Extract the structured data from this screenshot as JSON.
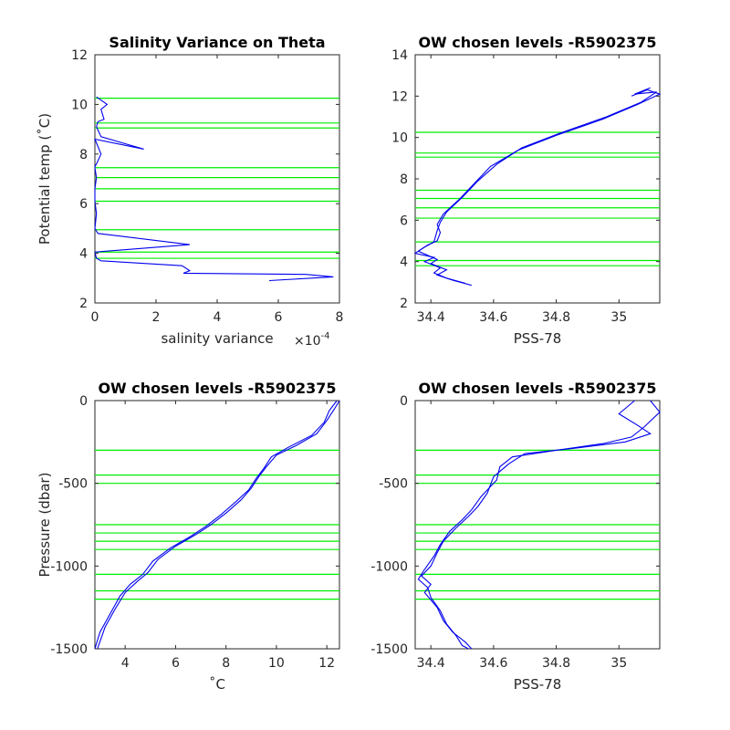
{
  "colors": {
    "profile": "#0000ee",
    "levels": "#00ee00",
    "axis": "#262626",
    "background": "#ffffff"
  },
  "chart_data": [
    {
      "type": "line",
      "title": "Salinity Variance on Theta",
      "xlabel": "salinity variance",
      "x_exponent": "×10",
      "x_exponent_power": "-4",
      "ylabel": "Potential temp (˚C)",
      "xlim": [
        0,
        8
      ],
      "ylim": [
        2,
        12
      ],
      "xticks": [
        "0",
        "2",
        "4",
        "6",
        "8"
      ],
      "yticks": [
        "2",
        "4",
        "6",
        "8",
        "10",
        "12"
      ],
      "xtick_values": [
        0,
        2,
        4,
        6,
        8
      ],
      "ytick_values": [
        2,
        4,
        6,
        8,
        10,
        12
      ],
      "grid": false,
      "level_lines": {
        "axis": "y",
        "values": [
          10.25,
          9.25,
          9.05,
          7.45,
          7.05,
          6.6,
          6.1,
          4.95,
          4.05,
          3.8
        ]
      },
      "series": [
        {
          "x": [
            5.7,
            7.8,
            6.9,
            2.9,
            3.1,
            2.85,
            0.2,
            0.05,
            0.0,
            3.1,
            0.1,
            0.0,
            0.05,
            0.0,
            0.0,
            0.05,
            0.0,
            0.0,
            0.05,
            0.2,
            0.0,
            1.6,
            0.2,
            0.05,
            0.1,
            0.3,
            0.2,
            0.4,
            0.05
          ],
          "y": [
            2.9,
            3.05,
            3.15,
            3.2,
            3.3,
            3.5,
            3.7,
            3.8,
            4.05,
            4.35,
            4.8,
            5.0,
            5.6,
            6.1,
            6.6,
            7.05,
            7.45,
            7.5,
            7.6,
            8.0,
            8.6,
            8.2,
            8.7,
            9.1,
            9.3,
            9.4,
            9.8,
            10.0,
            10.3
          ]
        }
      ]
    },
    {
      "type": "line",
      "title": "OW chosen levels -R5902375",
      "xlabel": "PSS-78",
      "ylabel": "",
      "xlim": [
        34.35,
        35.13
      ],
      "ylim": [
        2,
        14
      ],
      "xticks": [
        "34.4",
        "34.6",
        "34.8",
        "35"
      ],
      "yticks": [
        "2",
        "4",
        "6",
        "8",
        "10",
        "12",
        "14"
      ],
      "xtick_values": [
        34.4,
        34.6,
        34.8,
        35.0
      ],
      "ytick_values": [
        2,
        4,
        6,
        8,
        10,
        12,
        14
      ],
      "grid": false,
      "level_lines": {
        "axis": "y",
        "values": [
          10.25,
          9.25,
          9.05,
          7.45,
          7.05,
          6.6,
          6.1,
          4.95,
          4.05,
          3.8
        ]
      },
      "series": [
        {
          "x": [
            34.53,
            34.47,
            34.42,
            34.45,
            34.4,
            34.42,
            34.36,
            34.39,
            34.42,
            34.43,
            34.42,
            34.44,
            34.49,
            34.54,
            34.59,
            34.68,
            34.8,
            34.95,
            35.06,
            35.13,
            35.09,
            35.04
          ],
          "y": [
            2.85,
            3.1,
            3.35,
            3.6,
            3.9,
            4.1,
            4.5,
            4.8,
            5.0,
            5.4,
            5.8,
            6.3,
            7.0,
            7.8,
            8.6,
            9.4,
            10.1,
            10.9,
            11.6,
            12.1,
            12.3,
            12.0
          ]
        },
        {
          "x": [
            34.51,
            34.45,
            34.41,
            34.43,
            34.38,
            34.41,
            34.35,
            34.38,
            34.41,
            34.42,
            34.43,
            34.45,
            34.5,
            34.55,
            34.61,
            34.69,
            34.81,
            34.96,
            35.07,
            35.12,
            35.05,
            35.1
          ],
          "y": [
            2.95,
            3.2,
            3.45,
            3.7,
            4.0,
            4.2,
            4.4,
            4.7,
            4.95,
            5.5,
            5.9,
            6.4,
            7.1,
            7.9,
            8.7,
            9.5,
            10.2,
            11.0,
            11.7,
            12.2,
            12.1,
            12.4
          ]
        }
      ]
    },
    {
      "type": "line",
      "title": "OW chosen levels -R5902375",
      "xlabel": "˚C",
      "ylabel": "Pressure (dbar)",
      "xlim": [
        2.8,
        12.5
      ],
      "ylim": [
        -1500,
        0
      ],
      "xticks": [
        "4",
        "6",
        "8",
        "10",
        "12"
      ],
      "yticks": [
        "-1500",
        "-1000",
        "-500",
        "0"
      ],
      "xtick_values": [
        4,
        6,
        8,
        10,
        12
      ],
      "ytick_values": [
        -1500,
        -1000,
        -500,
        0
      ],
      "grid": false,
      "level_lines": {
        "axis": "y",
        "values": [
          -300,
          -450,
          -500,
          -750,
          -800,
          -850,
          -900,
          -1050,
          -1150,
          -1200
        ]
      },
      "series": [
        {
          "x": [
            12.5,
            12.3,
            12.0,
            11.6,
            10.8,
            10.0,
            9.6,
            9.3,
            9.0,
            8.6,
            8.0,
            7.4,
            6.8,
            6.0,
            5.3,
            4.9,
            4.5,
            4.0,
            3.6,
            3.2,
            2.9
          ],
          "y": [
            0,
            -50,
            -120,
            -200,
            -270,
            -330,
            -400,
            -460,
            -530,
            -600,
            -680,
            -750,
            -810,
            -880,
            -960,
            -1040,
            -1090,
            -1160,
            -1260,
            -1370,
            -1500
          ]
        },
        {
          "x": [
            12.4,
            12.1,
            11.9,
            11.4,
            10.5,
            9.8,
            9.5,
            9.2,
            8.9,
            8.4,
            7.8,
            7.2,
            6.6,
            5.8,
            5.1,
            4.7,
            4.2,
            3.8,
            3.4,
            3.0,
            2.8
          ],
          "y": [
            0,
            -60,
            -130,
            -210,
            -280,
            -340,
            -410,
            -470,
            -540,
            -610,
            -690,
            -760,
            -820,
            -890,
            -970,
            -1050,
            -1110,
            -1180,
            -1290,
            -1400,
            -1500
          ]
        }
      ]
    },
    {
      "type": "line",
      "title": "OW chosen levels -R5902375",
      "xlabel": "PSS-78",
      "ylabel": "",
      "xlim": [
        34.35,
        35.13
      ],
      "ylim": [
        -1500,
        0
      ],
      "xticks": [
        "34.4",
        "34.6",
        "34.8",
        "35"
      ],
      "yticks": [
        "-1500",
        "-1000",
        "-500",
        "0"
      ],
      "xtick_values": [
        34.4,
        34.6,
        34.8,
        35.0
      ],
      "ytick_values": [
        -1500,
        -1000,
        -500,
        0
      ],
      "grid": false,
      "level_lines": {
        "axis": "y",
        "values": [
          -300,
          -450,
          -500,
          -750,
          -800,
          -850,
          -900,
          -1050,
          -1150,
          -1200
        ]
      },
      "series": [
        {
          "x": [
            35.05,
            35.0,
            35.06,
            35.1,
            35.02,
            34.85,
            34.7,
            34.65,
            34.6,
            34.58,
            34.55,
            34.52,
            34.48,
            34.44,
            34.42,
            34.4,
            34.37,
            34.4,
            34.38,
            34.42,
            34.44,
            34.47,
            34.51,
            34.53
          ],
          "y": [
            0,
            -80,
            -150,
            -200,
            -250,
            -290,
            -320,
            -380,
            -460,
            -560,
            -640,
            -700,
            -770,
            -850,
            -920,
            -1000,
            -1060,
            -1110,
            -1160,
            -1250,
            -1330,
            -1400,
            -1460,
            -1500
          ]
        },
        {
          "x": [
            35.1,
            35.13,
            35.08,
            35.04,
            34.95,
            34.8,
            34.66,
            34.62,
            34.61,
            34.56,
            34.53,
            34.5,
            34.46,
            34.43,
            34.41,
            34.38,
            34.36,
            34.39,
            34.4,
            34.43,
            34.45,
            34.48,
            34.5,
            34.52
          ],
          "y": [
            0,
            -70,
            -160,
            -220,
            -260,
            -300,
            -340,
            -400,
            -480,
            -580,
            -660,
            -720,
            -790,
            -870,
            -940,
            -1020,
            -1080,
            -1130,
            -1190,
            -1270,
            -1350,
            -1420,
            -1480,
            -1500
          ]
        }
      ]
    }
  ]
}
